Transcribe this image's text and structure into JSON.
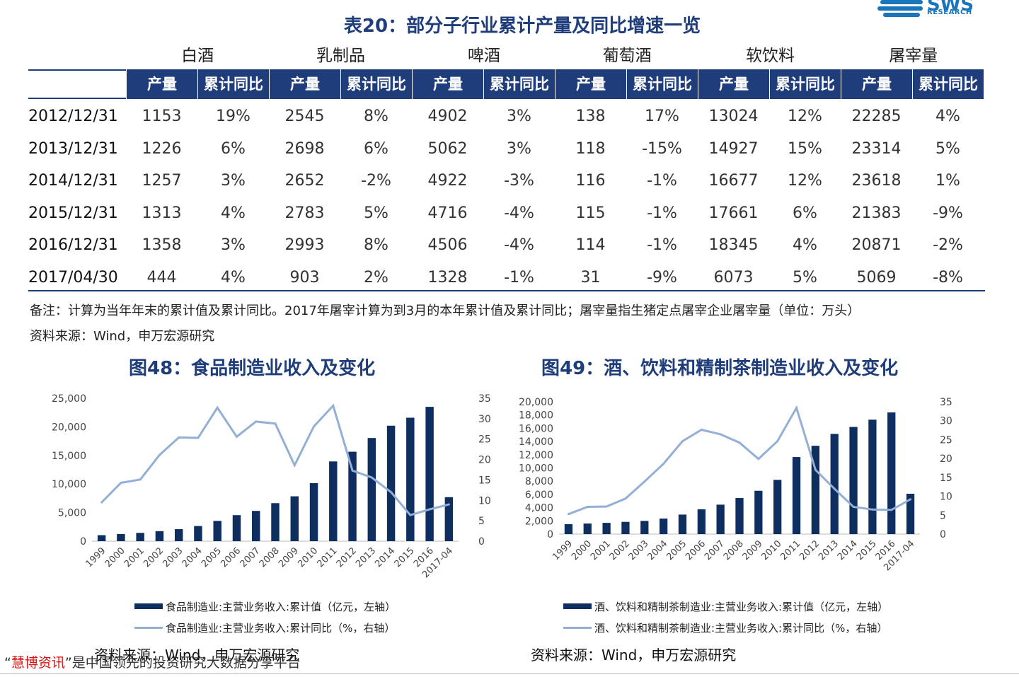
{
  "logo": {
    "text": "SWS",
    "sub": "RESEARCH",
    "color": "#1b75bb"
  },
  "table": {
    "title": "表20：部分子行业累计产量及同比增速一览",
    "groups": [
      "白酒",
      "乳制品",
      "啤酒",
      "葡萄酒",
      "软饮料",
      "屠宰量"
    ],
    "subheaders": [
      "产量",
      "累计同比"
    ],
    "rows": [
      {
        "date": "2012/12/31",
        "cells": [
          "1153",
          "19%",
          "2545",
          "8%",
          "4902",
          "3%",
          "138",
          "17%",
          "13024",
          "12%",
          "22285",
          "4%"
        ]
      },
      {
        "date": "2013/12/31",
        "cells": [
          "1226",
          "6%",
          "2698",
          "6%",
          "5062",
          "3%",
          "118",
          "-15%",
          "14927",
          "15%",
          "23314",
          "5%"
        ]
      },
      {
        "date": "2014/12/31",
        "cells": [
          "1257",
          "3%",
          "2652",
          "-2%",
          "4922",
          "-3%",
          "116",
          "-1%",
          "16677",
          "12%",
          "23618",
          "1%"
        ]
      },
      {
        "date": "2015/12/31",
        "cells": [
          "1313",
          "4%",
          "2783",
          "5%",
          "4716",
          "-4%",
          "115",
          "-1%",
          "17661",
          "6%",
          "21383",
          "-9%"
        ]
      },
      {
        "date": "2016/12/31",
        "cells": [
          "1358",
          "3%",
          "2993",
          "8%",
          "4506",
          "-4%",
          "114",
          "-1%",
          "18345",
          "4%",
          "20871",
          "-2%"
        ]
      },
      {
        "date": "2017/04/30",
        "cells": [
          "444",
          "4%",
          "903",
          "2%",
          "1328",
          "-1%",
          "31",
          "-9%",
          "6073",
          "5%",
          "5069",
          "-8%"
        ]
      }
    ],
    "note": "备注：计算为当年年末的累计值及累计同比。2017年屠宰计算为到3月的本年累计值及累计同比；屠宰量指生猪定点屠宰企业屠宰量（单位：万头）",
    "source": "资料来源：Wind，申万宏源研究"
  },
  "chart_data": [
    {
      "type": "bar",
      "title": "图48：食品制造业收入及变化",
      "categories": [
        "1999",
        "2000",
        "2001",
        "2002",
        "2003",
        "2004",
        "2005",
        "2006",
        "2007",
        "2008",
        "2009",
        "2010",
        "2011",
        "2012",
        "2013",
        "2014",
        "2015",
        "2016",
        "2017-04"
      ],
      "series": [
        {
          "name": "食品制造业:主营业务收入:累计值（亿元，左轴）",
          "type": "bar",
          "axis": "left",
          "color": "#0d2e5e",
          "values": [
            1050,
            1250,
            1450,
            1750,
            2100,
            2650,
            3550,
            4550,
            5300,
            6650,
            7850,
            10150,
            13950,
            15650,
            18050,
            20200,
            21600,
            23500,
            7700
          ]
        },
        {
          "name": "食品制造业:主营业务收入:累计同比（%，右轴）",
          "type": "line",
          "axis": "right",
          "color": "#93afd6",
          "values": [
            9.5,
            14.3,
            15.1,
            21.1,
            25.4,
            25.3,
            32.7,
            25.6,
            29.3,
            28.8,
            18.6,
            28.1,
            33.2,
            17.3,
            15.6,
            12.0,
            6.4,
            7.8,
            9.0
          ]
        }
      ],
      "yleft": {
        "min": 0,
        "max": 25000,
        "ticks": [
          "0",
          "5,000",
          "10,000",
          "15,000",
          "20,000",
          "25,000"
        ]
      },
      "yright": {
        "min": 0,
        "max": 35,
        "ticks": [
          "0",
          "5",
          "10",
          "15",
          "20",
          "25",
          "30",
          "35"
        ]
      },
      "source": "资料来源：Wind，申万宏源研究"
    },
    {
      "type": "bar",
      "title": "图49：酒、饮料和精制茶制造业收入及变化",
      "categories": [
        "1999",
        "2000",
        "2001",
        "2002",
        "2003",
        "2004",
        "2005",
        "2006",
        "2007",
        "2008",
        "2009",
        "2010",
        "2011",
        "2012",
        "2013",
        "2014",
        "2015",
        "2016",
        "2017-04"
      ],
      "series": [
        {
          "name": "酒、饮料和精制茶制造业:主营业务收入:累计值（亿元，左轴）",
          "type": "bar",
          "axis": "left",
          "color": "#0d2e5e",
          "values": [
            1500,
            1600,
            1700,
            1850,
            2000,
            2350,
            2950,
            3750,
            4450,
            5450,
            6550,
            8200,
            11650,
            13350,
            15150,
            16200,
            17300,
            18400,
            6100
          ]
        },
        {
          "name": "酒、饮料和精制茶制造业:主营业务收入:累计同比（%，右轴）",
          "type": "line",
          "axis": "right",
          "color": "#93afd6",
          "values": [
            5.3,
            7.2,
            7.3,
            9.4,
            13.9,
            18.6,
            24.6,
            27.6,
            26.4,
            24.2,
            19.9,
            24.6,
            33.4,
            17.0,
            12.0,
            7.2,
            6.5,
            6.4,
            9.2
          ]
        }
      ],
      "yleft": {
        "min": 0,
        "max": 20000,
        "ticks": [
          "0",
          "2,000",
          "4,000",
          "6,000",
          "8,000",
          "10,000",
          "12,000",
          "14,000",
          "16,000",
          "18,000",
          "20,000"
        ]
      },
      "yright": {
        "min": 0,
        "max": 35,
        "ticks": [
          "0",
          "5",
          "10",
          "15",
          "20",
          "25",
          "30",
          "35"
        ]
      },
      "source": "资料来源：Wind，申万宏源研究"
    }
  ],
  "footer": {
    "prefix": "“",
    "brand": "慧博资讯",
    "rest": "”是中国领先的投资研究大数据分享平台"
  }
}
